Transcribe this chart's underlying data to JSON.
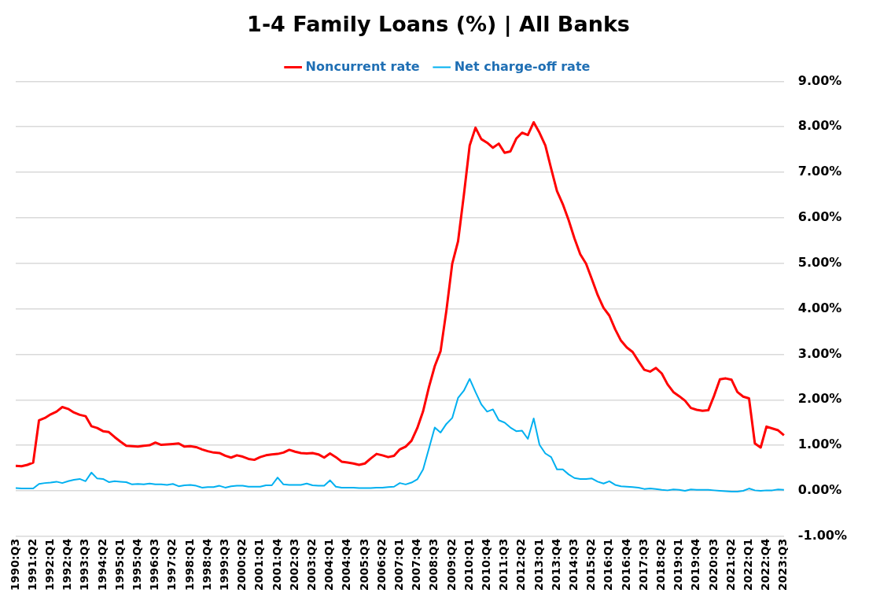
{
  "chart_data": {
    "type": "line",
    "title": "1-4 Family Loans (%) | All Banks",
    "categories": [
      "1990:Q3",
      null,
      null,
      "1991:Q2",
      null,
      null,
      "1992:Q1",
      null,
      null,
      "1992:Q4",
      null,
      null,
      "1993:Q3",
      null,
      null,
      "1994:Q2",
      null,
      null,
      "1995:Q1",
      null,
      null,
      "1995:Q4",
      null,
      null,
      "1996:Q3",
      null,
      null,
      "1997:Q2",
      null,
      null,
      "1998:Q1",
      null,
      null,
      "1998:Q4",
      null,
      null,
      "1999:Q3",
      null,
      null,
      "2000:Q2",
      null,
      null,
      "2001:Q1",
      null,
      null,
      "2001:Q4",
      null,
      null,
      "2002:Q3",
      null,
      null,
      "2003:Q2",
      null,
      null,
      "2004:Q1",
      null,
      null,
      "2004:Q4",
      null,
      null,
      "2005:Q3",
      null,
      null,
      "2006:Q2",
      null,
      null,
      "2007:Q1",
      null,
      null,
      "2007:Q4",
      null,
      null,
      "2008:Q3",
      null,
      null,
      "2009:Q2",
      null,
      null,
      "2010:Q1",
      null,
      null,
      "2010:Q4",
      null,
      null,
      "2011:Q3",
      null,
      null,
      "2012:Q2",
      null,
      null,
      "2013:Q1",
      null,
      null,
      "2013:Q4",
      null,
      null,
      "2014:Q3",
      null,
      null,
      "2015:Q2",
      null,
      null,
      "2016:Q1",
      null,
      null,
      "2016:Q4",
      null,
      null,
      "2017:Q3",
      null,
      null,
      "2018:Q2",
      null,
      null,
      "2019:Q1",
      null,
      null,
      "2019:Q4",
      null,
      null,
      "2020:Q3",
      null,
      null,
      "2021:Q2",
      null,
      null,
      "2022:Q1",
      null,
      null,
      "2022:Q4",
      null,
      null,
      "2023:Q3"
    ],
    "series": [
      {
        "name": "Noncurrent rate",
        "color": "#ff0000",
        "values": [
          0.55,
          0.54,
          0.57,
          0.62,
          1.55,
          1.6,
          1.68,
          1.74,
          1.84,
          1.8,
          1.72,
          1.67,
          1.64,
          1.42,
          1.38,
          1.31,
          1.29,
          1.18,
          1.08,
          0.99,
          0.98,
          0.97,
          0.99,
          1.0,
          1.06,
          1.01,
          1.02,
          1.03,
          1.04,
          0.97,
          0.98,
          0.96,
          0.91,
          0.87,
          0.84,
          0.83,
          0.77,
          0.73,
          0.78,
          0.75,
          0.7,
          0.68,
          0.74,
          0.78,
          0.8,
          0.81,
          0.84,
          0.9,
          0.86,
          0.83,
          0.82,
          0.83,
          0.8,
          0.73,
          0.82,
          0.74,
          0.64,
          0.62,
          0.6,
          0.57,
          0.6,
          0.71,
          0.81,
          0.78,
          0.74,
          0.77,
          0.91,
          0.97,
          1.1,
          1.38,
          1.75,
          2.28,
          2.74,
          3.07,
          3.96,
          4.99,
          5.48,
          6.5,
          7.59,
          7.98,
          7.73,
          7.65,
          7.54,
          7.63,
          7.43,
          7.46,
          7.74,
          7.87,
          7.82,
          8.1,
          7.87,
          7.59,
          7.08,
          6.59,
          6.3,
          5.95,
          5.55,
          5.2,
          4.99,
          4.65,
          4.3,
          4.02,
          3.85,
          3.55,
          3.3,
          3.15,
          3.05,
          2.85,
          2.66,
          2.62,
          2.7,
          2.58,
          2.34,
          2.17,
          2.08,
          1.98,
          1.82,
          1.78,
          1.76,
          1.77,
          2.09,
          2.45,
          2.47,
          2.44,
          2.17,
          2.07,
          2.03,
          1.04,
          0.95,
          1.41,
          1.37,
          1.33,
          1.22
        ]
      },
      {
        "name": "Net charge-off rate",
        "color": "#00b0f0",
        "values": [
          0.06,
          0.05,
          0.05,
          0.05,
          0.15,
          0.17,
          0.18,
          0.2,
          0.17,
          0.21,
          0.24,
          0.26,
          0.21,
          0.4,
          0.27,
          0.26,
          0.19,
          0.21,
          0.2,
          0.19,
          0.14,
          0.15,
          0.14,
          0.16,
          0.14,
          0.14,
          0.13,
          0.15,
          0.1,
          0.12,
          0.13,
          0.11,
          0.07,
          0.08,
          0.08,
          0.11,
          0.07,
          0.1,
          0.11,
          0.11,
          0.09,
          0.09,
          0.09,
          0.12,
          0.12,
          0.29,
          0.14,
          0.13,
          0.13,
          0.13,
          0.16,
          0.12,
          0.11,
          0.11,
          0.23,
          0.09,
          0.07,
          0.07,
          0.07,
          0.06,
          0.06,
          0.06,
          0.07,
          0.07,
          0.08,
          0.09,
          0.17,
          0.14,
          0.18,
          0.25,
          0.47,
          0.93,
          1.39,
          1.28,
          1.47,
          1.6,
          2.04,
          2.2,
          2.46,
          2.17,
          1.9,
          1.74,
          1.79,
          1.55,
          1.5,
          1.39,
          1.31,
          1.32,
          1.14,
          1.59,
          1.01,
          0.82,
          0.74,
          0.47,
          0.47,
          0.36,
          0.28,
          0.26,
          0.26,
          0.27,
          0.2,
          0.16,
          0.21,
          0.13,
          0.1,
          0.09,
          0.08,
          0.07,
          0.04,
          0.05,
          0.04,
          0.02,
          0.01,
          0.03,
          0.02,
          0.0,
          0.03,
          0.02,
          0.02,
          0.02,
          0.01,
          0.0,
          -0.01,
          -0.02,
          -0.02,
          0.0,
          0.05,
          0.01,
          0.0,
          0.01,
          0.01,
          0.03,
          0.02
        ]
      }
    ],
    "ylim": [
      -1,
      9
    ],
    "yticks": [
      {
        "value": -1,
        "label": "-1.00%"
      },
      {
        "value": 0,
        "label": "0.00%"
      },
      {
        "value": 1,
        "label": "1.00%"
      },
      {
        "value": 2,
        "label": "2.00%"
      },
      {
        "value": 3,
        "label": "3.00%"
      },
      {
        "value": 4,
        "label": "4.00%"
      },
      {
        "value": 5,
        "label": "5.00%"
      },
      {
        "value": 6,
        "label": "6.00%"
      },
      {
        "value": 7,
        "label": "7.00%"
      },
      {
        "value": 8,
        "label": "8.00%"
      },
      {
        "value": 9,
        "label": "9.00%"
      }
    ],
    "grid": "y",
    "legend": "top",
    "marker": "none",
    "line_style": "solid"
  }
}
